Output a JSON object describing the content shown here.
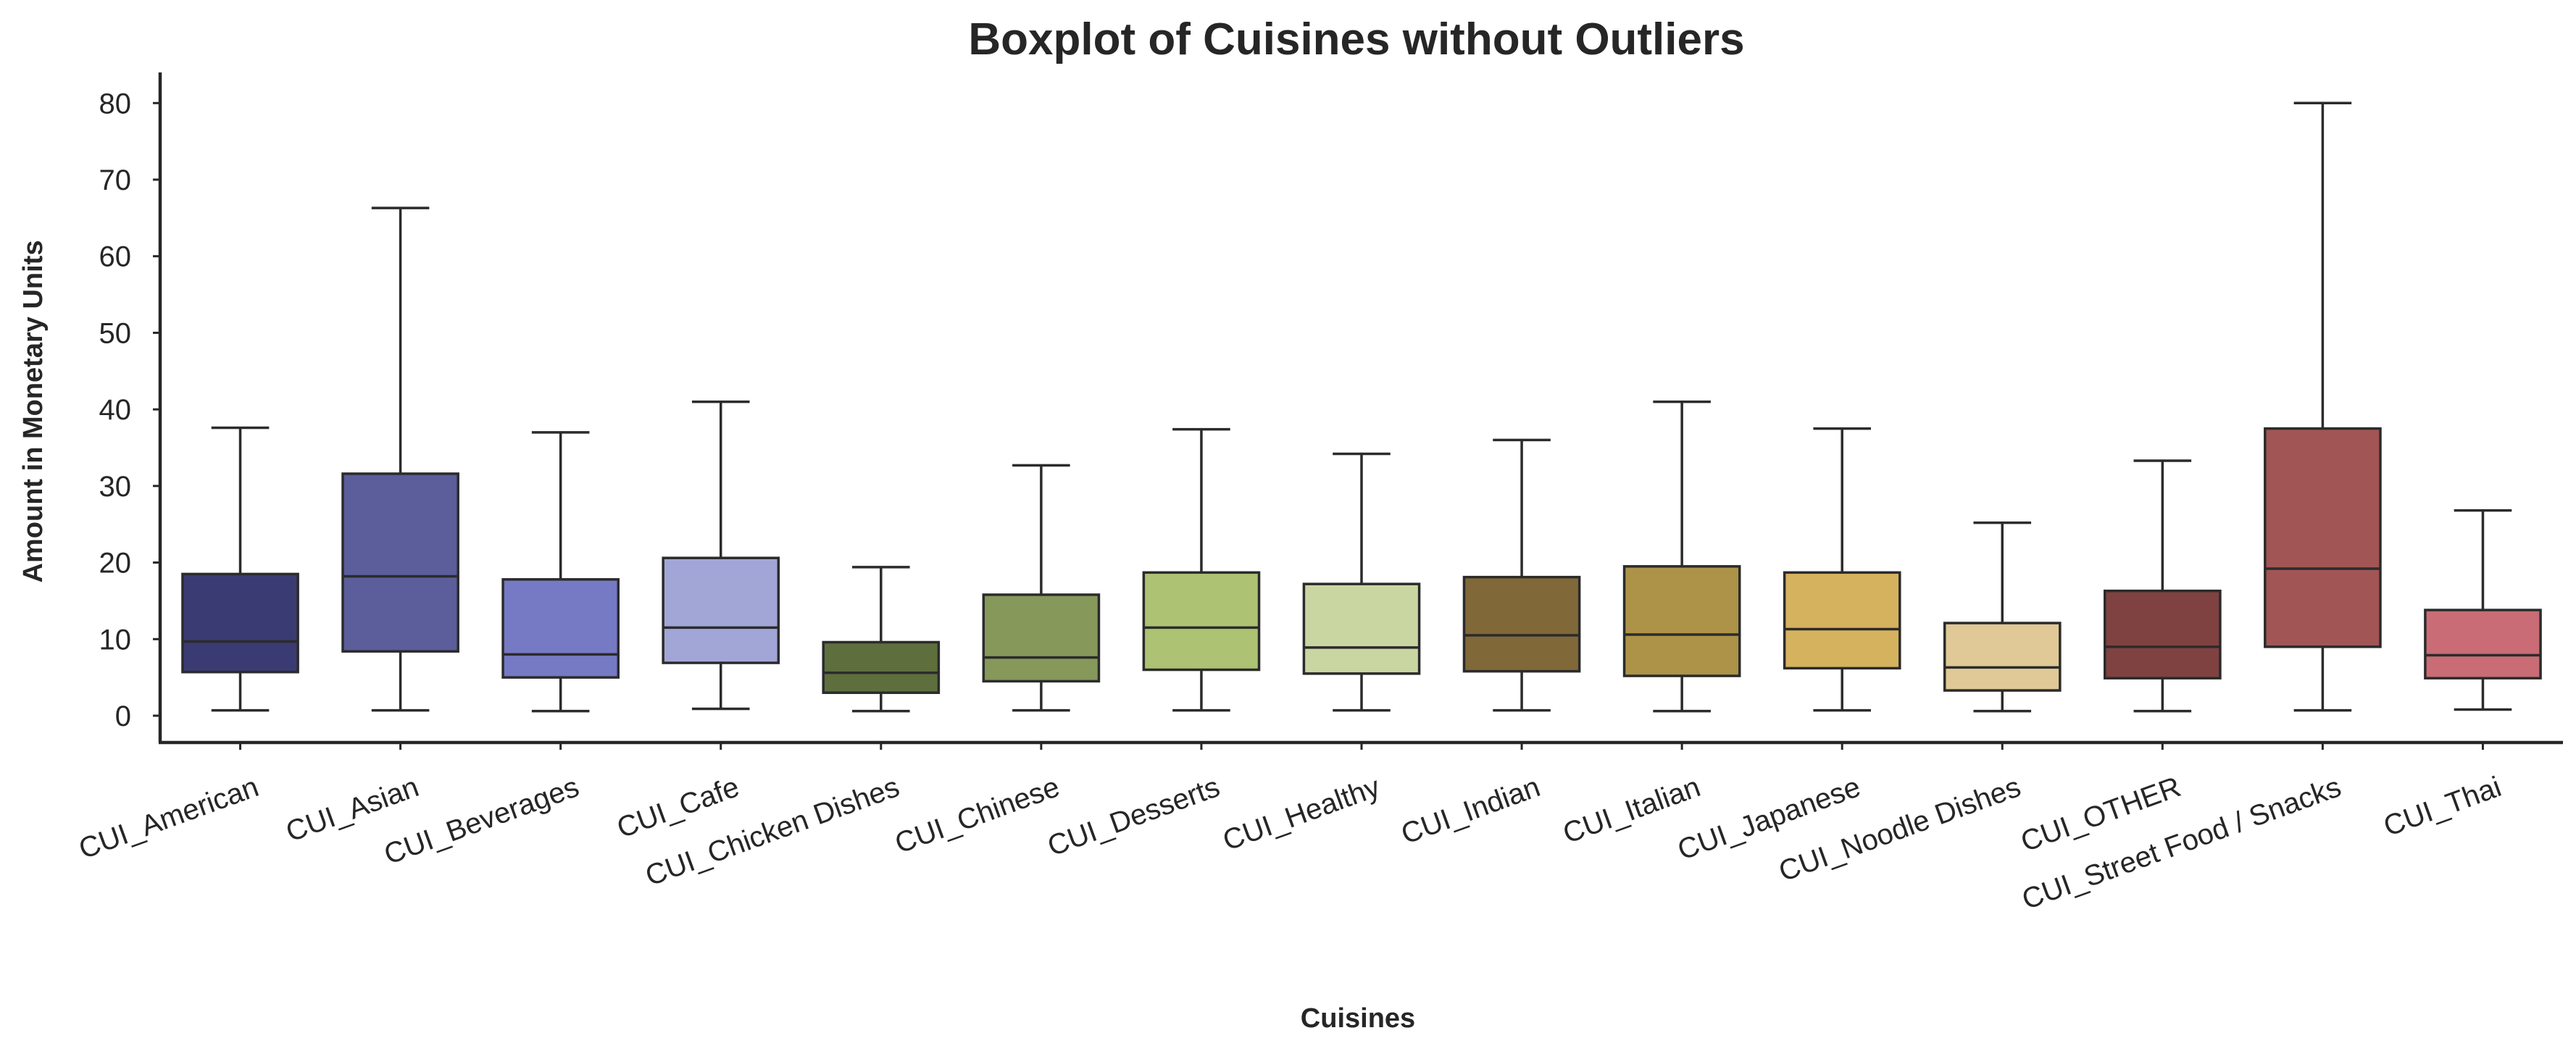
{
  "chart_data": {
    "type": "box",
    "title": "Boxplot of Cuisines without Outliers",
    "xlabel": "Cuisines",
    "ylabel": "Amount in Monetary Units",
    "ylim": [
      -3.5,
      84
    ],
    "yticks": [
      0,
      10,
      20,
      30,
      40,
      50,
      60,
      70,
      80
    ],
    "grid": false,
    "categories": [
      "CUI_American",
      "CUI_Asian",
      "CUI_Beverages",
      "CUI_Cafe",
      "CUI_Chicken Dishes",
      "CUI_Chinese",
      "CUI_Desserts",
      "CUI_Healthy",
      "CUI_Indian",
      "CUI_Italian",
      "CUI_Japanese",
      "CUI_Noodle Dishes",
      "CUI_OTHER",
      "CUI_Street Food / Snacks",
      "CUI_Thai"
    ],
    "boxes": [
      {
        "min": 0.7,
        "q1": 5.7,
        "median": 9.7,
        "q3": 18.5,
        "max": 37.6,
        "color": "#3b3b73"
      },
      {
        "min": 0.7,
        "q1": 8.4,
        "median": 18.2,
        "q3": 31.6,
        "max": 66.3,
        "color": "#5b5e9b"
      },
      {
        "min": 0.6,
        "q1": 5.0,
        "median": 8.0,
        "q3": 17.8,
        "max": 37.0,
        "color": "#7679c4"
      },
      {
        "min": 0.9,
        "q1": 6.9,
        "median": 11.5,
        "q3": 20.6,
        "max": 41.0,
        "color": "#a2a6d6"
      },
      {
        "min": 0.6,
        "q1": 3.0,
        "median": 5.6,
        "q3": 9.6,
        "max": 19.4,
        "color": "#5e6f3d"
      },
      {
        "min": 0.7,
        "q1": 4.5,
        "median": 7.6,
        "q3": 15.8,
        "max": 32.7,
        "color": "#86985a"
      },
      {
        "min": 0.7,
        "q1": 6.0,
        "median": 11.5,
        "q3": 18.7,
        "max": 37.4,
        "color": "#adc273"
      },
      {
        "min": 0.7,
        "q1": 5.5,
        "median": 8.9,
        "q3": 17.2,
        "max": 34.2,
        "color": "#cad6a2"
      },
      {
        "min": 0.7,
        "q1": 5.8,
        "median": 10.5,
        "q3": 18.1,
        "max": 36.0,
        "color": "#816839"
      },
      {
        "min": 0.6,
        "q1": 5.2,
        "median": 10.6,
        "q3": 19.5,
        "max": 41.0,
        "color": "#ac9348"
      },
      {
        "min": 0.7,
        "q1": 6.2,
        "median": 11.3,
        "q3": 18.7,
        "max": 37.5,
        "color": "#d5b25e"
      },
      {
        "min": 0.6,
        "q1": 3.3,
        "median": 6.3,
        "q3": 12.1,
        "max": 25.2,
        "color": "#e0c996"
      },
      {
        "min": 0.6,
        "q1": 4.9,
        "median": 9.0,
        "q3": 16.3,
        "max": 33.3,
        "color": "#7f4240"
      },
      {
        "min": 0.7,
        "q1": 9.0,
        "median": 19.2,
        "q3": 37.5,
        "max": 80.0,
        "color": "#a25555"
      },
      {
        "min": 0.8,
        "q1": 4.9,
        "median": 7.9,
        "q3": 13.8,
        "max": 26.8,
        "color": "#c96c75"
      }
    ]
  }
}
